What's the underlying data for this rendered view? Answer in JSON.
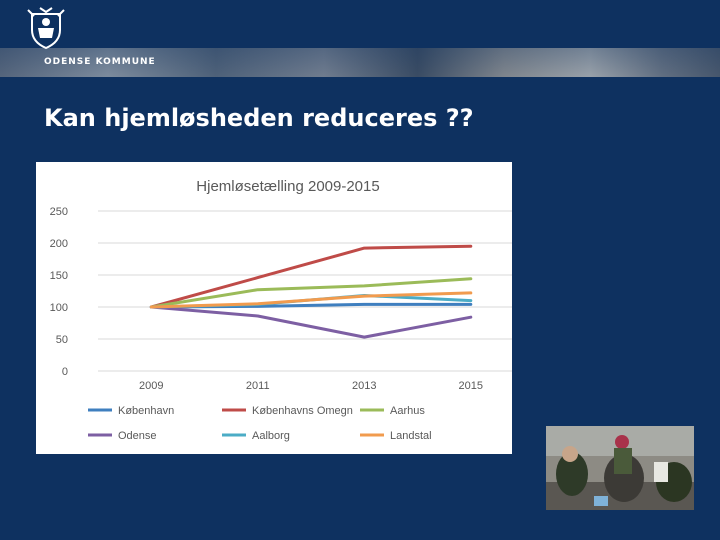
{
  "header": {
    "org_name": "ODENSE KOMMUNE",
    "logo_icon": "odense-coat-of-arms-icon",
    "photo_strip": "people-photo-strip"
  },
  "slide": {
    "title": "Kan hjemløsheden reduceres ??"
  },
  "photo": {
    "icon": "homeless-people-photo"
  },
  "colors": {
    "background": "#0e3160",
    "chart_background": "#ffffff"
  },
  "chart_data": {
    "type": "line",
    "title": "Hjemløsetælling 2009-2015",
    "xlabel": "",
    "ylabel": "",
    "categories": [
      "2009",
      "2011",
      "2013",
      "2015"
    ],
    "ylim": [
      0,
      250
    ],
    "yticks": [
      0,
      50,
      100,
      150,
      200,
      250
    ],
    "grid": true,
    "legend_position": "bottom",
    "series": [
      {
        "name": "København",
        "color": "#3f7fbf",
        "values": [
          100,
          101,
          104,
          104
        ]
      },
      {
        "name": "Københavns Omegn",
        "color": "#bf4b48",
        "values": [
          100,
          146,
          192,
          195
        ]
      },
      {
        "name": "Aarhus",
        "color": "#9bbb59",
        "values": [
          100,
          127,
          133,
          144
        ]
      },
      {
        "name": "Odense",
        "color": "#7d5fa3",
        "values": [
          100,
          86,
          53,
          84
        ]
      },
      {
        "name": "Aalborg",
        "color": "#4bacc6",
        "values": [
          100,
          104,
          118,
          110
        ]
      },
      {
        "name": "Landstal",
        "color": "#f19b4e",
        "values": [
          100,
          105,
          117,
          122
        ]
      }
    ]
  }
}
